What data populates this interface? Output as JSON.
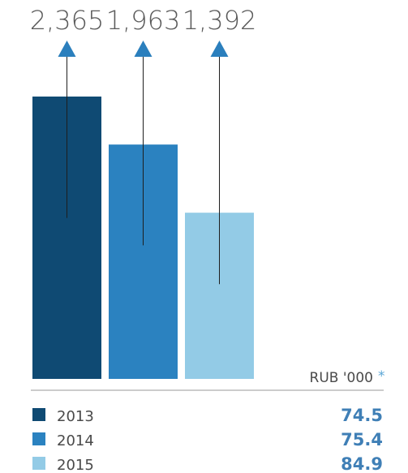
{
  "chart_data": {
    "type": "bar",
    "categories": [
      "2013",
      "2014",
      "2015"
    ],
    "values": [
      2365,
      1963,
      1392
    ],
    "value_labels": [
      "2,365",
      "1,963",
      "1,392"
    ],
    "unit": "RUB '000",
    "unit_marker": "*",
    "ylim": [
      0,
      2800
    ],
    "colors": [
      "#0f4a73",
      "#2b82c0",
      "#93cbe6"
    ],
    "legend": [
      {
        "label": "2013",
        "value": "74.5",
        "color": "#0f4a73"
      },
      {
        "label": "2014",
        "value": "75.4",
        "color": "#2b82c0"
      },
      {
        "label": "2015",
        "value": "84.9",
        "color": "#93cbe6"
      }
    ],
    "legend_placement": "bottom",
    "grid": false
  }
}
